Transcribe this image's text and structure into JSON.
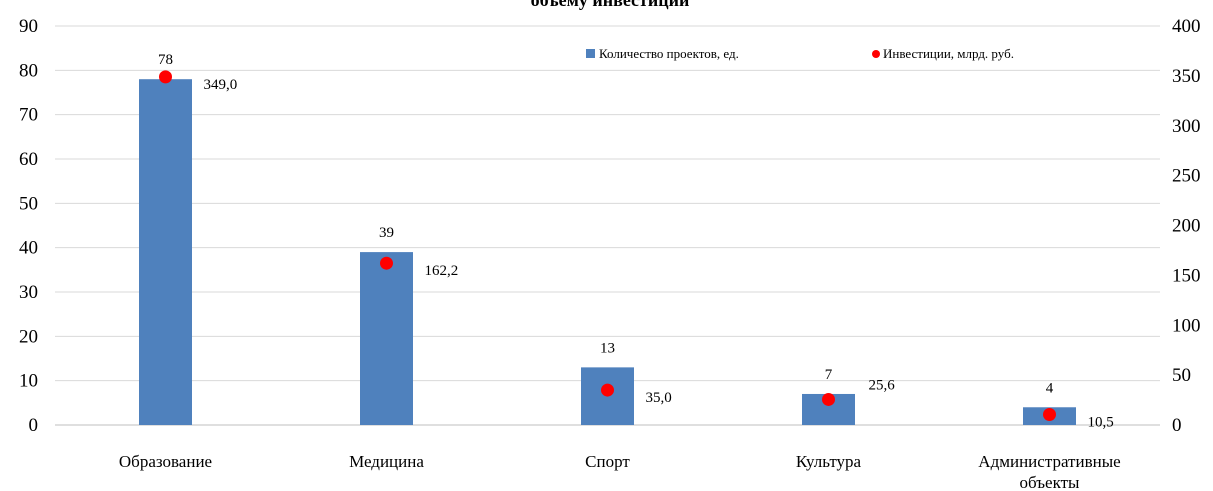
{
  "chart_data": {
    "type": "bar",
    "title": "объему инвестиций",
    "categories": [
      "Образование",
      "Медицина",
      "Спорт",
      "Культура",
      "Административные объекты"
    ],
    "series": [
      {
        "name": "Количество проектов, ед.",
        "kind": "bar",
        "axis": "left",
        "color": "#4F81BD",
        "values": [
          78,
          39,
          13,
          7,
          4
        ],
        "labels": [
          "78",
          "39",
          "13",
          "7",
          "4"
        ]
      },
      {
        "name": "Инвестиции, млрд. руб.",
        "kind": "point",
        "axis": "right",
        "color": "#FF0000",
        "values": [
          349.0,
          162.2,
          35.0,
          25.6,
          10.5
        ],
        "labels": [
          "349,0",
          "162,2",
          "35,0",
          "25,6",
          "10,5"
        ]
      }
    ],
    "y_left": {
      "min": 0,
      "max": 90,
      "ticks": [
        "0",
        "10",
        "20",
        "30",
        "40",
        "50",
        "60",
        "70",
        "80",
        "90"
      ]
    },
    "y_right": {
      "min": 0,
      "max": 400,
      "ticks": [
        "0",
        "50",
        "100",
        "150",
        "200",
        "250",
        "300",
        "350",
        "400"
      ]
    },
    "grid": true,
    "legend_position": "top-right"
  }
}
